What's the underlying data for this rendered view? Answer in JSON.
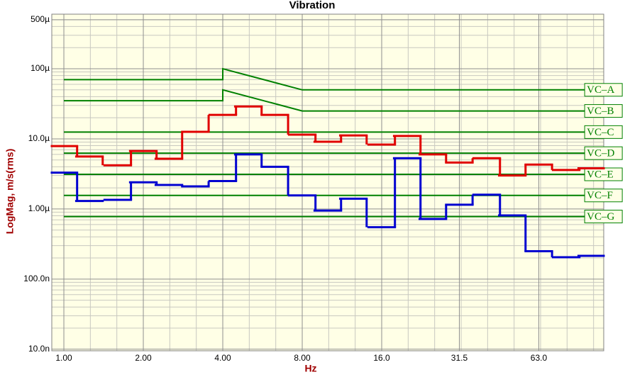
{
  "chart_data": {
    "type": "step-line",
    "title": "Vibration",
    "x_label": "Hz",
    "y_label": "LogMag, m/s(rms)",
    "xscale": "log",
    "yscale": "log",
    "grid": true,
    "xlim": [
      0.9,
      111
    ],
    "ylim": [
      9.5e-09,
      0.0006
    ],
    "xticks": [
      {
        "value": 1,
        "label": "1.00"
      },
      {
        "value": 2,
        "label": "2.00"
      },
      {
        "value": 4,
        "label": "4.00"
      },
      {
        "value": 8,
        "label": "8.00"
      },
      {
        "value": 16,
        "label": "16.0"
      },
      {
        "value": 31.5,
        "label": "31.5"
      },
      {
        "value": 63,
        "label": "63.0"
      }
    ],
    "yticks": [
      {
        "value": 0.0005,
        "label": "500µ"
      },
      {
        "value": 0.0001,
        "label": "100µ"
      },
      {
        "value": 1e-05,
        "label": "10.0µ"
      },
      {
        "value": 1e-06,
        "label": "1.00µ"
      },
      {
        "value": 1e-07,
        "label": "100.0n"
      },
      {
        "value": 1e-08,
        "label": "10.0n"
      }
    ],
    "series": [
      {
        "color": "#e00000",
        "style": "step",
        "x": [
          1,
          1.25,
          1.6,
          2,
          2.5,
          3.15,
          4,
          5,
          6.3,
          8,
          10,
          12.5,
          16,
          20,
          25,
          31.5,
          40,
          50,
          63,
          80,
          100
        ],
        "values": [
          7.9e-06,
          5.6e-06,
          4.2e-06,
          6.7e-06,
          5.2e-06,
          1.26e-05,
          2.2e-05,
          2.9e-05,
          2.2e-05,
          1.15e-05,
          9.1e-06,
          1.12e-05,
          8.3e-06,
          1.1e-05,
          6e-06,
          4.6e-06,
          5.3e-06,
          3e-06,
          4.3e-06,
          3.6e-06,
          3.8e-06
        ]
      },
      {
        "color": "#0000d0",
        "style": "step",
        "x": [
          1,
          1.25,
          1.6,
          2,
          2.5,
          3.15,
          4,
          5,
          6.3,
          8,
          10,
          12.5,
          16,
          20,
          25,
          31.5,
          40,
          50,
          63,
          80,
          100
        ],
        "values": [
          3.3e-06,
          1.3e-06,
          1.35e-06,
          2.4e-06,
          2.2e-06,
          2.1e-06,
          2.5e-06,
          6e-06,
          4e-06,
          1.56e-06,
          9.5e-07,
          1.4e-06,
          5.5e-07,
          5.3e-06,
          7.2e-07,
          1.15e-06,
          1.6e-06,
          8.1e-07,
          2.5e-07,
          2.05e-07,
          2.15e-07
        ]
      },
      {
        "name": "VC–A",
        "color": "#008000",
        "style": "line",
        "x": [
          1,
          4,
          4,
          8,
          94
        ],
        "values": [
          7e-05,
          7e-05,
          0.0001,
          5e-05,
          5e-05
        ]
      },
      {
        "name": "VC–B",
        "color": "#008000",
        "style": "line",
        "x": [
          1,
          4,
          4,
          8,
          94
        ],
        "values": [
          3.5e-05,
          3.5e-05,
          5e-05,
          2.5e-05,
          2.5e-05
        ]
      },
      {
        "name": "VC–C",
        "color": "#008000",
        "style": "line",
        "x": [
          1,
          94
        ],
        "values": [
          1.25e-05,
          1.25e-05
        ]
      },
      {
        "name": "VC–D",
        "color": "#008000",
        "style": "line",
        "x": [
          1,
          94
        ],
        "values": [
          6.25e-06,
          6.25e-06
        ]
      },
      {
        "name": "VC–E",
        "color": "#008000",
        "style": "line",
        "x": [
          1,
          94
        ],
        "values": [
          3.12e-06,
          3.12e-06
        ]
      },
      {
        "name": "VC–F",
        "color": "#008000",
        "style": "line",
        "x": [
          1,
          94
        ],
        "values": [
          1.56e-06,
          1.56e-06
        ]
      },
      {
        "name": "VC–G",
        "color": "#008000",
        "style": "line",
        "x": [
          1,
          94
        ],
        "values": [
          7.8e-07,
          7.8e-07
        ]
      }
    ]
  }
}
